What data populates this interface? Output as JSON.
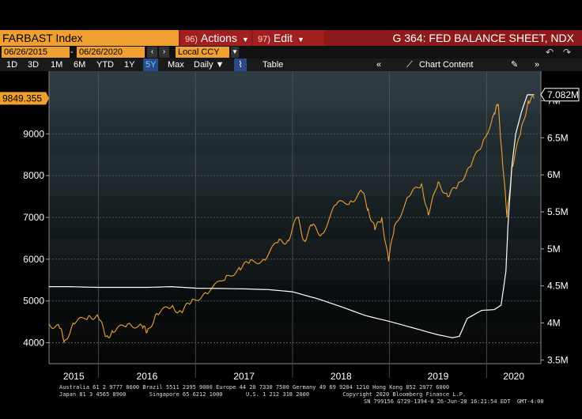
{
  "header": {
    "ticker": "FARBAST Index",
    "actions_num": "96)",
    "actions_label": "Actions",
    "edit_num": "97)",
    "edit_label": "Edit",
    "graph_title": "G 364: FED BALANCE SHEET, NDX"
  },
  "toolbar": {
    "start_date": "06/26/2015",
    "end_date": "06/26/2020",
    "currency": "Local CCY",
    "periods": [
      "1D",
      "3D",
      "1M",
      "6M",
      "YTD",
      "1Y",
      "5Y",
      "Max"
    ],
    "active_period": "5Y",
    "frequency": "Daily",
    "table_label": "Table",
    "chart_content_label": "Chart Content"
  },
  "chart_data": {
    "type": "line",
    "x_labels": [
      "2015",
      "2016",
      "2017",
      "2018",
      "2019",
      "2020"
    ],
    "left_axis": {
      "ticks": [
        "4000",
        "5000",
        "6000",
        "7000",
        "8000",
        "9000"
      ],
      "range": [
        3500,
        10500
      ],
      "last_value": "9849.355",
      "last_value_color": "#f0a030"
    },
    "right_axis": {
      "ticks": [
        "3.5M",
        "4M",
        "4.5M",
        "5M",
        "5.5M",
        "6M",
        "6.5M",
        "7M"
      ],
      "range": [
        3.45,
        7.4
      ],
      "last_value": "7.082M",
      "last_value_color": "#ffffff"
    },
    "series": [
      {
        "color": "#f0a030",
        "axis": "left",
        "points": [
          [
            2015.49,
            4450
          ],
          [
            2015.6,
            4350
          ],
          [
            2015.65,
            4050
          ],
          [
            2015.75,
            4450
          ],
          [
            2015.9,
            4650
          ],
          [
            2016.0,
            4600
          ],
          [
            2016.08,
            4150
          ],
          [
            2016.15,
            4250
          ],
          [
            2016.3,
            4450
          ],
          [
            2016.45,
            4400
          ],
          [
            2016.5,
            4250
          ],
          [
            2016.6,
            4700
          ],
          [
            2016.75,
            4850
          ],
          [
            2016.85,
            4750
          ],
          [
            2016.95,
            4950
          ],
          [
            2017.1,
            5200
          ],
          [
            2017.3,
            5500
          ],
          [
            2017.45,
            5800
          ],
          [
            2017.55,
            5900
          ],
          [
            2017.7,
            6000
          ],
          [
            2017.85,
            6400
          ],
          [
            2017.95,
            6450
          ],
          [
            2018.05,
            7000
          ],
          [
            2018.12,
            6450
          ],
          [
            2018.2,
            6800
          ],
          [
            2018.3,
            6600
          ],
          [
            2018.45,
            7300
          ],
          [
            2018.6,
            7400
          ],
          [
            2018.72,
            7600
          ],
          [
            2018.78,
            7200
          ],
          [
            2018.85,
            6700
          ],
          [
            2018.92,
            7000
          ],
          [
            2018.99,
            5950
          ],
          [
            2019.05,
            6800
          ],
          [
            2019.2,
            7500
          ],
          [
            2019.33,
            7800
          ],
          [
            2019.4,
            7050
          ],
          [
            2019.5,
            7850
          ],
          [
            2019.6,
            7500
          ],
          [
            2019.7,
            7750
          ],
          [
            2019.82,
            8200
          ],
          [
            2019.95,
            8700
          ],
          [
            2020.08,
            9500
          ],
          [
            2020.12,
            9700
          ],
          [
            2020.16,
            8500
          ],
          [
            2020.21,
            7000
          ],
          [
            2020.26,
            8200
          ],
          [
            2020.35,
            9000
          ],
          [
            2020.43,
            9800
          ],
          [
            2020.49,
            9849.355
          ]
        ]
      },
      {
        "color": "#ffffff",
        "axis": "right",
        "points": [
          [
            2015.49,
            4.49
          ],
          [
            2015.7,
            4.49
          ],
          [
            2016.0,
            4.48
          ],
          [
            2016.5,
            4.48
          ],
          [
            2016.75,
            4.49
          ],
          [
            2017.0,
            4.47
          ],
          [
            2017.5,
            4.46
          ],
          [
            2017.75,
            4.45
          ],
          [
            2018.0,
            4.42
          ],
          [
            2018.25,
            4.33
          ],
          [
            2018.5,
            4.22
          ],
          [
            2018.75,
            4.1
          ],
          [
            2019.0,
            4.02
          ],
          [
            2019.25,
            3.93
          ],
          [
            2019.5,
            3.84
          ],
          [
            2019.65,
            3.8
          ],
          [
            2019.72,
            3.82
          ],
          [
            2019.8,
            4.06
          ],
          [
            2019.95,
            4.17
          ],
          [
            2020.08,
            4.18
          ],
          [
            2020.15,
            4.24
          ],
          [
            2020.2,
            4.7
          ],
          [
            2020.22,
            5.3
          ],
          [
            2020.26,
            6.1
          ],
          [
            2020.3,
            6.55
          ],
          [
            2020.36,
            6.85
          ],
          [
            2020.42,
            7.08
          ],
          [
            2020.49,
            7.082
          ]
        ]
      }
    ]
  },
  "footer": {
    "line1": "Australia 61 2 9777 8600 Brazil 5511 2395 9000 Europe 44 20 7330 7500 Germany 49 69 9204 1210 Hong Kong 852 2977 6000",
    "line2": "Japan 81 3 4565 8900       Singapore 65 6212 1000       U.S. 1 212 318 2000          Copyright 2020 Bloomberg Finance L.P.",
    "line3": "SN 799156 G729-1394-0 26-Jun-20 16:21:54 EDT  GMT-4:00"
  }
}
